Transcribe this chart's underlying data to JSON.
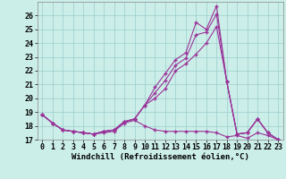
{
  "x": [
    0,
    1,
    2,
    3,
    4,
    5,
    6,
    7,
    8,
    9,
    10,
    11,
    12,
    13,
    14,
    15,
    16,
    17,
    18,
    19,
    20,
    21,
    22,
    23
  ],
  "line1": [
    18.8,
    18.2,
    17.7,
    17.6,
    17.5,
    17.4,
    17.5,
    17.6,
    18.2,
    18.4,
    18.0,
    17.7,
    17.6,
    17.6,
    17.6,
    17.6,
    17.6,
    17.5,
    17.2,
    17.3,
    17.1,
    17.5,
    17.3,
    17.0
  ],
  "line2": [
    18.8,
    18.2,
    17.7,
    17.6,
    17.5,
    17.4,
    17.6,
    17.7,
    18.3,
    18.5,
    19.5,
    20.0,
    20.7,
    22.0,
    22.5,
    23.2,
    24.0,
    25.2,
    21.2,
    17.4,
    17.5,
    18.5,
    17.5,
    17.0
  ],
  "line3": [
    18.8,
    18.2,
    17.7,
    17.6,
    17.5,
    17.4,
    17.6,
    17.7,
    18.3,
    18.5,
    19.5,
    20.8,
    21.8,
    22.8,
    23.3,
    25.5,
    25.0,
    26.7,
    21.2,
    17.4,
    17.5,
    18.5,
    17.5,
    17.0
  ],
  "line4": [
    18.8,
    18.2,
    17.7,
    17.6,
    17.5,
    17.4,
    17.6,
    17.7,
    18.3,
    18.5,
    19.5,
    20.4,
    21.3,
    22.4,
    22.9,
    24.6,
    24.8,
    26.1,
    21.2,
    17.4,
    17.5,
    18.5,
    17.5,
    17.0
  ],
  "background_color": "#cceee8",
  "grid_color": "#99cccc",
  "line_color": "#993399",
  "marker": "+",
  "ylim": [
    17,
    27
  ],
  "yticks": [
    17,
    18,
    19,
    20,
    21,
    22,
    23,
    24,
    25,
    26
  ],
  "xlabel": "Windchill (Refroidissement éolien,°C)",
  "xlabel_fontsize": 6.5,
  "tick_fontsize": 6.0,
  "figsize": [
    3.2,
    2.0
  ],
  "dpi": 100
}
